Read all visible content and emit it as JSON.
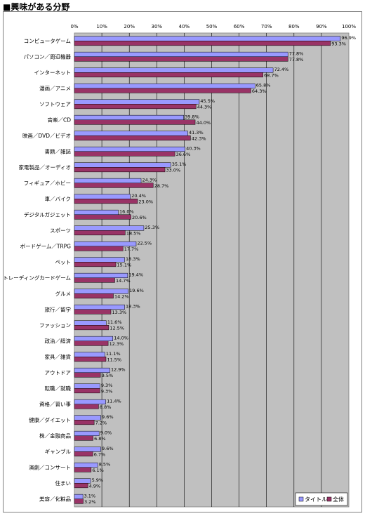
{
  "page_title": "■興味がある分野",
  "chart_data": {
    "type": "bar",
    "orientation": "horizontal",
    "title": "",
    "xlim": [
      0,
      100
    ],
    "x_ticks": [
      "0%",
      "10%",
      "20%",
      "30%",
      "40%",
      "50%",
      "60%",
      "70%",
      "80%",
      "90%",
      "100%"
    ],
    "grid": true,
    "legend_position": "bottom-right",
    "categories": [
      "コンピュータゲーム",
      "パソコン／周辺機器",
      "インターネット",
      "漫画／アニメ",
      "ソフトウェア",
      "音楽／CD",
      "映画／DVD／ビデオ",
      "書籍／雑誌",
      "家電製品／オーディオ",
      "フィギュア／ホビー",
      "車／バイク",
      "デジタルガジェット",
      "スポーツ",
      "ボードゲーム／TRPG",
      "ペット",
      "トレーディングカードゲーム",
      "グルメ",
      "旅行／留学",
      "ファッション",
      "政治／経済",
      "家具／雑貨",
      "アウトドア",
      "転職／就職",
      "資格／習い事",
      "健康／ダイエット",
      "株／金融商品",
      "ギャンブル",
      "演劇／コンサート",
      "住まい",
      "美容／化粧品"
    ],
    "series": [
      {
        "name": "タイトル",
        "color": "#9999ff",
        "values": [
          96.9,
          77.8,
          72.4,
          65.8,
          45.5,
          39.8,
          41.3,
          40.3,
          35.1,
          24.3,
          20.4,
          16.0,
          25.3,
          22.5,
          18.3,
          19.4,
          19.6,
          18.3,
          11.6,
          14.0,
          11.1,
          12.9,
          9.3,
          11.4,
          9.6,
          9.0,
          9.6,
          8.5,
          5.9,
          3.1
        ],
        "labels": [
          "96.9%",
          "77.8%",
          "72.4%",
          "65.8%",
          "45.5%",
          "39.8%",
          "41.3%",
          "40.3%",
          "35.1%",
          "24.3%",
          "20.4%",
          "16.0%",
          "25.3%",
          "22.5%",
          "18.3%",
          "19.4%",
          "19.6%",
          "18.3%",
          "11.6%",
          "14.0%",
          "11.1%",
          "12.9%",
          "9.3%",
          "11.4%",
          "9.6%",
          "9.0%",
          "9.6%",
          "8.5%",
          "5.9%",
          "3.1%"
        ]
      },
      {
        "name": "全体",
        "color": "#993366",
        "values": [
          93.3,
          77.8,
          68.7,
          64.3,
          44.3,
          44.0,
          42.3,
          36.6,
          33.0,
          28.7,
          23.0,
          20.6,
          18.5,
          17.7,
          15.1,
          14.7,
          14.2,
          13.3,
          12.5,
          12.3,
          11.5,
          9.5,
          9.3,
          8.8,
          7.2,
          6.8,
          6.7,
          6.1,
          4.9,
          3.2
        ],
        "labels": [
          "93.3%",
          "77.8%",
          "68.7%",
          "64.3%",
          "44.3%",
          "44.0%",
          "42.3%",
          "36.6%",
          "33.0%",
          "28.7%",
          "23.0%",
          "20.6%",
          "18.5%",
          "17.7%",
          "15.1%",
          "14.7%",
          "14.2%",
          "13.3%",
          "12.5%",
          "12.3%",
          "11.5%",
          "9.5%",
          "9.3%",
          "8.8%",
          "7.2%",
          "6.8%",
          "6.7%",
          "6.1%",
          "4.9%",
          "3.2%"
        ]
      }
    ],
    "plot_background": "#c0c0c0"
  }
}
